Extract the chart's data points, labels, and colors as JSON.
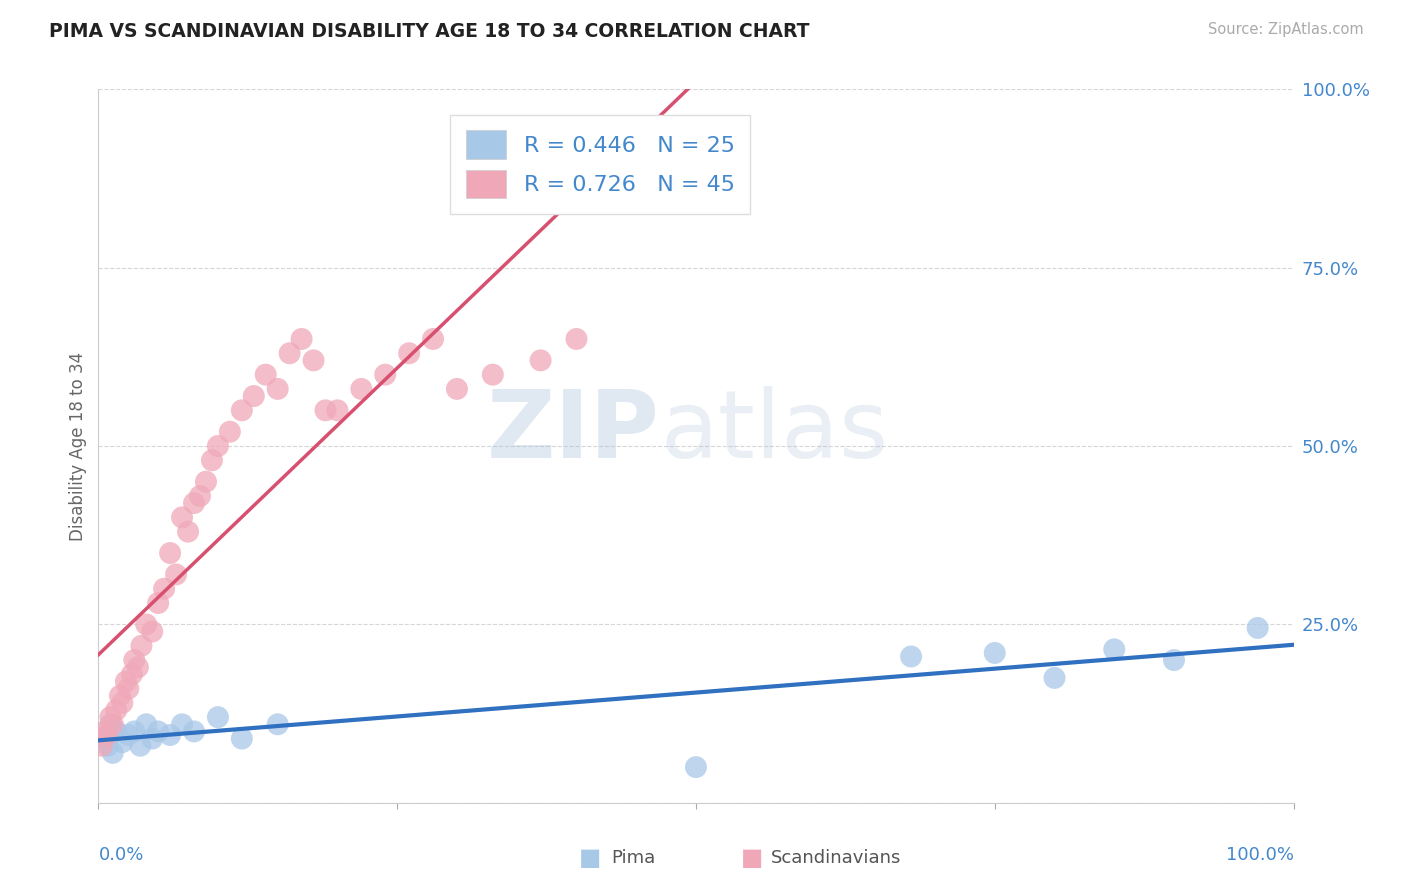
{
  "title": "PIMA VS SCANDINAVIAN DISABILITY AGE 18 TO 34 CORRELATION CHART",
  "source": "Source: ZipAtlas.com",
  "ylabel": "Disability Age 18 to 34",
  "watermark": "ZIPatlas",
  "pima_R": 0.446,
  "pima_N": 25,
  "scand_R": 0.726,
  "scand_N": 45,
  "pima_color": "#A8C8E8",
  "scand_color": "#F0A8B8",
  "pima_line_color": "#3070C0",
  "scand_line_color": "#D85070",
  "pima_x": [
    0.5,
    0.8,
    1.0,
    1.2,
    1.5,
    2.0,
    2.5,
    3.0,
    3.5,
    4.0,
    4.5,
    5.0,
    6.0,
    7.0,
    8.0,
    10.0,
    12.0,
    15.0,
    50.0,
    68.0,
    75.0,
    80.0,
    85.0,
    90.0,
    97.0
  ],
  "pima_y": [
    9.0,
    8.0,
    11.0,
    7.0,
    10.0,
    8.5,
    9.5,
    10.0,
    8.0,
    11.0,
    9.0,
    10.0,
    9.5,
    11.0,
    10.0,
    12.0,
    9.0,
    11.0,
    5.0,
    20.5,
    21.0,
    17.5,
    21.5,
    20.0,
    24.5
  ],
  "scand_x": [
    0.3,
    0.5,
    0.7,
    1.0,
    1.2,
    1.5,
    1.8,
    2.0,
    2.3,
    2.5,
    2.8,
    3.0,
    3.3,
    3.6,
    4.0,
    4.5,
    5.0,
    5.5,
    6.0,
    6.5,
    7.0,
    7.5,
    8.0,
    8.5,
    9.0,
    9.5,
    10.0,
    11.0,
    12.0,
    13.0,
    14.0,
    15.0,
    16.0,
    17.0,
    18.0,
    19.0,
    20.0,
    22.0,
    24.0,
    26.0,
    28.0,
    30.0,
    33.0,
    37.0,
    40.0
  ],
  "scand_y": [
    8.0,
    10.0,
    9.5,
    12.0,
    11.0,
    13.0,
    15.0,
    14.0,
    17.0,
    16.0,
    18.0,
    20.0,
    19.0,
    22.0,
    25.0,
    24.0,
    28.0,
    30.0,
    35.0,
    32.0,
    40.0,
    38.0,
    42.0,
    43.0,
    45.0,
    48.0,
    50.0,
    52.0,
    55.0,
    57.0,
    60.0,
    58.0,
    63.0,
    65.0,
    62.0,
    55.0,
    55.0,
    58.0,
    60.0,
    63.0,
    65.0,
    58.0,
    60.0,
    62.0,
    65.0
  ],
  "grid_color": "#CCCCCC",
  "background_color": "#FFFFFF",
  "label_color": "#4488CC",
  "tick_color": "#4488CC",
  "title_color": "#222222"
}
